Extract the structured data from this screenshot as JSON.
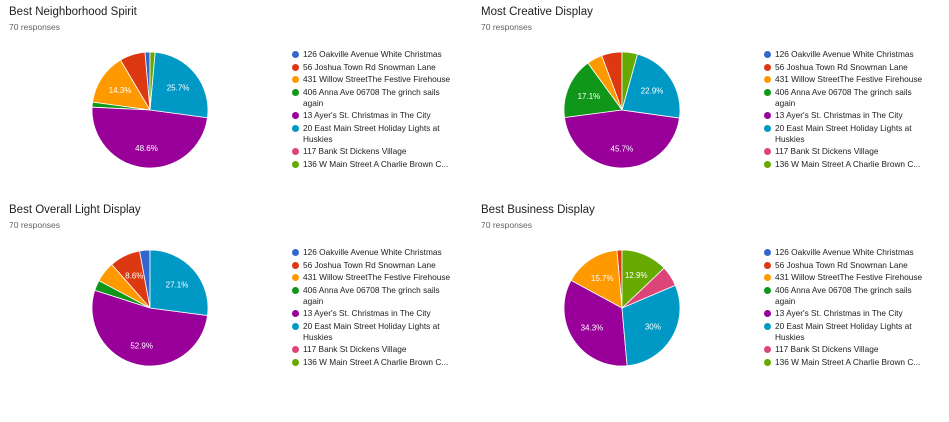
{
  "chart_data": [
    {
      "type": "pie",
      "title": "Best Neighborhood Spirit",
      "subtitle": "70 responses",
      "categories": [
        "126 Oakville Avenue White Christmas",
        "56 Joshua Town Rd Snowman Lane",
        "431 Willow StreetThe Festive Firehouse",
        "406 Anna Ave 06708 The grinch sails again",
        "13 Ayer's St. Christmas in The City",
        "20 East Main Street Holiday Lights at Huskies",
        "117 Bank St Dickens Village",
        "136 W Main Street A Charlie Brown C..."
      ],
      "values": [
        1.4,
        7.1,
        14.3,
        1.4,
        48.6,
        25.7,
        0,
        1.4
      ],
      "data_labels": [
        "",
        "",
        "14.3%",
        "",
        "48.6%",
        "25.7%",
        "",
        ""
      ]
    },
    {
      "type": "pie",
      "title": "Most Creative Display",
      "subtitle": "70 responses",
      "categories": [
        "126 Oakville Avenue White Christmas",
        "56 Joshua Town Rd Snowman Lane",
        "431 Willow StreetThe Festive Firehouse",
        "406 Anna Ave 06708 The grinch sails again",
        "13 Ayer's St. Christmas in The City",
        "20 East Main Street Holiday Lights at Huskies",
        "117 Bank St Dickens Village",
        "136 W Main Street A Charlie Brown C..."
      ],
      "values": [
        0,
        5.7,
        4.3,
        17.1,
        45.7,
        22.9,
        0,
        4.3
      ],
      "data_labels": [
        "",
        "",
        "",
        "17.1%",
        "45.7%",
        "22.9%",
        "",
        ""
      ]
    },
    {
      "type": "pie",
      "title": "Best Overall Light Display",
      "subtitle": "70 responses",
      "categories": [
        "126 Oakville Avenue White Christmas",
        "56 Joshua Town Rd Snowman Lane",
        "431 Willow StreetThe Festive Firehouse",
        "406 Anna Ave 06708 The grinch sails again",
        "13 Ayer's St. Christmas in The City",
        "20 East Main Street Holiday Lights at Huskies",
        "117 Bank St Dickens Village",
        "136 W Main Street A Charlie Brown C..."
      ],
      "values": [
        2.9,
        8.6,
        5.7,
        2.9,
        52.9,
        27.1,
        0,
        0
      ],
      "data_labels": [
        "",
        "8.6%",
        "",
        "",
        "52.9%",
        "27.1%",
        "",
        ""
      ]
    },
    {
      "type": "pie",
      "title": "Best Business Display",
      "subtitle": "70 responses",
      "categories": [
        "126 Oakville Avenue White Christmas",
        "56 Joshua Town Rd Snowman Lane",
        "431 Willow StreetThe Festive Firehouse",
        "406 Anna Ave 06708 The grinch sails again",
        "13 Ayer's St. Christmas in The City",
        "20 East Main Street Holiday Lights at Huskies",
        "117 Bank St Dickens Village",
        "136 W Main Street A Charlie Brown C..."
      ],
      "values": [
        0,
        1.4,
        15.7,
        0,
        34.3,
        30,
        5.7,
        12.9
      ],
      "data_labels": [
        "",
        "",
        "15.7%",
        "",
        "34.3%",
        "30%",
        "",
        "12.9%"
      ]
    }
  ],
  "colors": [
    "#3366cc",
    "#dc3912",
    "#ff9900",
    "#109618",
    "#990099",
    "#0099c6",
    "#dd4477",
    "#66aa00"
  ]
}
